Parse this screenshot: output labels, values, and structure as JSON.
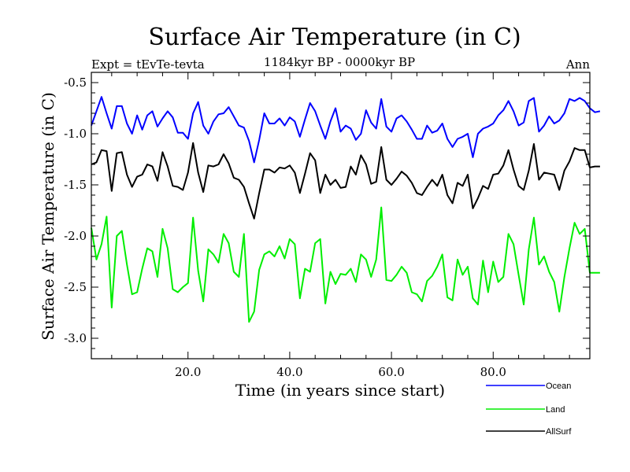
{
  "chart_data": {
    "type": "line",
    "title": "Surface Air Temperature (in C)",
    "subtitle_left": "Expt = tEvTe-tevta",
    "subtitle_center": "1184kyr BP - 0000kyr BP",
    "subtitle_right": "Ann",
    "xlabel": "Time (in years since start)",
    "ylabel": "Surface Air Temperature (in C)",
    "xlim": [
      1,
      99
    ],
    "ylim": [
      -3.2,
      -0.4
    ],
    "xticks": [
      20,
      40,
      60,
      80
    ],
    "xtick_labels": [
      "20.0",
      "40.0",
      "60.0",
      "80.0"
    ],
    "yticks": [
      -0.5,
      -1.0,
      -1.5,
      -2.0,
      -2.5,
      -3.0
    ],
    "ytick_labels": [
      "-0.5",
      "-1.0",
      "-1.5",
      "-2.0",
      "-2.5",
      "-3.0"
    ],
    "x_start": 1,
    "x_step": 1,
    "series": [
      {
        "name": "Ocean",
        "color": "#0000ff",
        "values": [
          -0.92,
          -0.78,
          -0.64,
          -0.8,
          -0.95,
          -0.73,
          -0.73,
          -0.9,
          -1.0,
          -0.82,
          -0.96,
          -0.82,
          -0.78,
          -0.93,
          -0.85,
          -0.78,
          -0.84,
          -0.99,
          -0.99,
          -1.05,
          -0.8,
          -0.69,
          -0.92,
          -1.0,
          -0.88,
          -0.81,
          -0.8,
          -0.74,
          -0.83,
          -0.92,
          -0.94,
          -1.07,
          -1.28,
          -1.06,
          -0.8,
          -0.9,
          -0.9,
          -0.85,
          -0.92,
          -0.84,
          -0.88,
          -1.03,
          -0.86,
          -0.7,
          -0.78,
          -0.92,
          -1.05,
          -0.88,
          -0.75,
          -0.98,
          -0.92,
          -0.95,
          -1.06,
          -1.0,
          -0.77,
          -0.89,
          -0.95,
          -0.66,
          -0.93,
          -0.98,
          -0.85,
          -0.82,
          -0.88,
          -0.96,
          -1.05,
          -1.05,
          -0.92,
          -0.99,
          -0.97,
          -0.9,
          -1.05,
          -1.13,
          -1.05,
          -1.03,
          -1.0,
          -1.23,
          -1.0,
          -0.95,
          -0.93,
          -0.9,
          -0.82,
          -0.77,
          -0.68,
          -0.78,
          -0.92,
          -0.89,
          -0.68,
          -0.65,
          -0.98,
          -0.92,
          -0.83,
          -0.9,
          -0.87,
          -0.8,
          -0.66,
          -0.68,
          -0.65,
          -0.68,
          -0.75,
          -0.79,
          -0.78
        ],
        "legend_label": "Ocean"
      },
      {
        "name": "Land",
        "color": "#00ee00",
        "values": [
          -1.92,
          -2.23,
          -2.08,
          -1.81,
          -2.7,
          -2.0,
          -1.95,
          -2.28,
          -2.57,
          -2.55,
          -2.32,
          -2.12,
          -2.15,
          -2.4,
          -1.93,
          -2.12,
          -2.52,
          -2.55,
          -2.5,
          -2.46,
          -1.82,
          -2.34,
          -2.64,
          -2.13,
          -2.18,
          -2.26,
          -1.98,
          -2.07,
          -2.35,
          -2.4,
          -1.98,
          -2.84,
          -2.74,
          -2.33,
          -2.18,
          -2.15,
          -2.2,
          -2.1,
          -2.22,
          -2.03,
          -2.08,
          -2.61,
          -2.32,
          -2.35,
          -2.07,
          -2.03,
          -2.66,
          -2.35,
          -2.47,
          -2.37,
          -2.38,
          -2.32,
          -2.45,
          -2.18,
          -2.23,
          -2.4,
          -2.23,
          -1.72,
          -2.43,
          -2.44,
          -2.38,
          -2.3,
          -2.36,
          -2.55,
          -2.57,
          -2.64,
          -2.44,
          -2.39,
          -2.3,
          -2.18,
          -2.6,
          -2.63,
          -2.23,
          -2.38,
          -2.3,
          -2.61,
          -2.67,
          -2.24,
          -2.55,
          -2.25,
          -2.45,
          -2.4,
          -1.98,
          -2.08,
          -2.38,
          -2.67,
          -2.13,
          -1.82,
          -2.28,
          -2.2,
          -2.35,
          -2.45,
          -2.74,
          -2.4,
          -2.12,
          -1.87,
          -1.98,
          -1.93,
          -2.36,
          -2.36,
          -2.36
        ],
        "legend_label": "Land"
      },
      {
        "name": "AllSurf",
        "color": "#000000",
        "values": [
          -1.3,
          -1.28,
          -1.16,
          -1.17,
          -1.56,
          -1.19,
          -1.18,
          -1.4,
          -1.52,
          -1.42,
          -1.4,
          -1.3,
          -1.32,
          -1.46,
          -1.18,
          -1.32,
          -1.51,
          -1.52,
          -1.55,
          -1.38,
          -1.09,
          -1.38,
          -1.57,
          -1.31,
          -1.32,
          -1.3,
          -1.2,
          -1.29,
          -1.43,
          -1.45,
          -1.52,
          -1.68,
          -1.83,
          -1.58,
          -1.35,
          -1.35,
          -1.38,
          -1.33,
          -1.34,
          -1.31,
          -1.38,
          -1.58,
          -1.39,
          -1.19,
          -1.26,
          -1.58,
          -1.4,
          -1.5,
          -1.45,
          -1.53,
          -1.52,
          -1.32,
          -1.4,
          -1.21,
          -1.3,
          -1.49,
          -1.47,
          -1.13,
          -1.45,
          -1.5,
          -1.44,
          -1.37,
          -1.41,
          -1.48,
          -1.58,
          -1.6,
          -1.52,
          -1.45,
          -1.51,
          -1.4,
          -1.6,
          -1.68,
          -1.48,
          -1.51,
          -1.4,
          -1.73,
          -1.63,
          -1.51,
          -1.54,
          -1.4,
          -1.39,
          -1.31,
          -1.16,
          -1.35,
          -1.51,
          -1.55,
          -1.36,
          -1.1,
          -1.45,
          -1.38,
          -1.39,
          -1.4,
          -1.55,
          -1.36,
          -1.27,
          -1.14,
          -1.16,
          -1.16,
          -1.33,
          -1.32,
          -1.32
        ],
        "legend_label": "AllSurf"
      }
    ]
  }
}
